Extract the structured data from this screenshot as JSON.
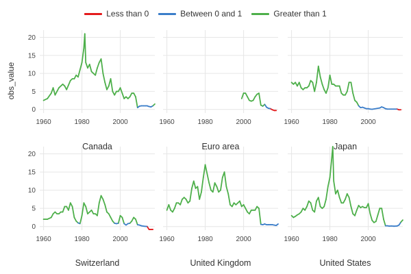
{
  "chart_data": {
    "type": "line",
    "ylabel": "obs_value",
    "legend": {
      "placement": "top",
      "items": [
        {
          "label": "Less than 0",
          "color": "#e41a1c"
        },
        {
          "label": "Between 0 and 1",
          "color": "#3a7dc9"
        },
        {
          "label": "Greater than 1",
          "color": "#4daf4a"
        }
      ]
    },
    "x_ticks": [
      1960,
      1980,
      2000
    ],
    "y_ticks": [
      0,
      5,
      10,
      15,
      20
    ],
    "xlim": [
      1958,
      2018
    ],
    "ylim": [
      -1,
      22
    ],
    "grid": true,
    "thresholds": {
      "low": 0,
      "high": 1
    },
    "panels": [
      {
        "title": "Canada",
        "points": [
          [
            1960,
            2.5
          ],
          [
            1962,
            3.0
          ],
          [
            1964,
            4.5
          ],
          [
            1965,
            6.0
          ],
          [
            1966,
            4.0
          ],
          [
            1968,
            6.0
          ],
          [
            1970,
            7.0
          ],
          [
            1971,
            6.5
          ],
          [
            1972,
            5.5
          ],
          [
            1974,
            8.0
          ],
          [
            1975,
            8.5
          ],
          [
            1976,
            8.5
          ],
          [
            1977,
            9.5
          ],
          [
            1978,
            9.0
          ],
          [
            1979,
            11.0
          ],
          [
            1980,
            13.0
          ],
          [
            1981,
            17.0
          ],
          [
            1981.5,
            21.0
          ],
          [
            1982,
            13.0
          ],
          [
            1983,
            11.5
          ],
          [
            1984,
            12.5
          ],
          [
            1985,
            10.5
          ],
          [
            1986,
            10.0
          ],
          [
            1987,
            9.5
          ],
          [
            1988,
            11.5
          ],
          [
            1989,
            13.0
          ],
          [
            1990,
            14.0
          ],
          [
            1991,
            10.0
          ],
          [
            1992,
            7.5
          ],
          [
            1993,
            5.5
          ],
          [
            1994,
            6.5
          ],
          [
            1995,
            8.5
          ],
          [
            1996,
            5.0
          ],
          [
            1997,
            4.0
          ],
          [
            1998,
            5.0
          ],
          [
            1999,
            5.0
          ],
          [
            2000,
            6.0
          ],
          [
            2001,
            4.5
          ],
          [
            2002,
            3.0
          ],
          [
            2003,
            3.5
          ],
          [
            2004,
            3.0
          ],
          [
            2005,
            3.5
          ],
          [
            2006,
            4.5
          ],
          [
            2007,
            4.5
          ],
          [
            2008,
            3.5
          ],
          [
            2009,
            0.5
          ],
          [
            2010,
            0.9
          ],
          [
            2011,
            1.0
          ],
          [
            2012,
            1.0
          ],
          [
            2013,
            1.0
          ],
          [
            2014,
            1.0
          ],
          [
            2015,
            0.8
          ],
          [
            2016,
            0.7
          ],
          [
            2017,
            1.0
          ],
          [
            2018,
            1.5
          ]
        ]
      },
      {
        "title": "Euro area",
        "points": [
          [
            1999,
            3.0
          ],
          [
            2000,
            4.5
          ],
          [
            2001,
            4.5
          ],
          [
            2002,
            3.5
          ],
          [
            2003,
            2.5
          ],
          [
            2004,
            2.3
          ],
          [
            2005,
            2.5
          ],
          [
            2006,
            3.5
          ],
          [
            2007,
            4.2
          ],
          [
            2008,
            4.5
          ],
          [
            2009,
            1.2
          ],
          [
            2010,
            0.9
          ],
          [
            2011,
            1.4
          ],
          [
            2012,
            0.6
          ],
          [
            2013,
            0.3
          ],
          [
            2014,
            0.2
          ],
          [
            2015,
            -0.1
          ],
          [
            2016,
            -0.3
          ],
          [
            2017,
            -0.3
          ]
        ]
      },
      {
        "title": "Japan",
        "points": [
          [
            1960,
            7.5
          ],
          [
            1961,
            7.0
          ],
          [
            1962,
            7.5
          ],
          [
            1963,
            6.5
          ],
          [
            1964,
            7.5
          ],
          [
            1965,
            6.0
          ],
          [
            1966,
            5.5
          ],
          [
            1967,
            6.0
          ],
          [
            1968,
            6.0
          ],
          [
            1969,
            6.5
          ],
          [
            1970,
            8.0
          ],
          [
            1971,
            7.5
          ],
          [
            1972,
            5.0
          ],
          [
            1973,
            7.5
          ],
          [
            1974,
            12.0
          ],
          [
            1975,
            9.0
          ],
          [
            1976,
            7.0
          ],
          [
            1977,
            5.5
          ],
          [
            1978,
            4.5
          ],
          [
            1979,
            6.0
          ],
          [
            1980,
            9.5
          ],
          [
            1981,
            7.0
          ],
          [
            1982,
            7.0
          ],
          [
            1983,
            6.5
          ],
          [
            1984,
            6.5
          ],
          [
            1985,
            6.5
          ],
          [
            1986,
            4.5
          ],
          [
            1987,
            4.0
          ],
          [
            1988,
            4.0
          ],
          [
            1989,
            5.0
          ],
          [
            1990,
            7.5
          ],
          [
            1991,
            7.5
          ],
          [
            1992,
            4.5
          ],
          [
            1993,
            2.5
          ],
          [
            1994,
            2.0
          ],
          [
            1995,
            1.0
          ],
          [
            1996,
            0.5
          ],
          [
            1997,
            0.6
          ],
          [
            1998,
            0.4
          ],
          [
            1999,
            0.2
          ],
          [
            2000,
            0.2
          ],
          [
            2001,
            0.1
          ],
          [
            2002,
            0.05
          ],
          [
            2006,
            0.4
          ],
          [
            2007,
            0.7
          ],
          [
            2008,
            0.5
          ],
          [
            2009,
            0.2
          ],
          [
            2010,
            0.1
          ],
          [
            2011,
            0.1
          ],
          [
            2012,
            0.1
          ],
          [
            2013,
            0.1
          ],
          [
            2014,
            0.1
          ],
          [
            2015,
            0.1
          ],
          [
            2016,
            -0.1
          ],
          [
            2017,
            -0.1
          ]
        ]
      },
      {
        "title": "Switzerland",
        "points": [
          [
            1960,
            2.0
          ],
          [
            1962,
            2.0
          ],
          [
            1964,
            2.5
          ],
          [
            1965,
            3.5
          ],
          [
            1966,
            4.0
          ],
          [
            1967,
            3.5
          ],
          [
            1968,
            3.5
          ],
          [
            1969,
            4.0
          ],
          [
            1970,
            4.0
          ],
          [
            1971,
            5.5
          ],
          [
            1972,
            5.5
          ],
          [
            1973,
            4.5
          ],
          [
            1974,
            6.5
          ],
          [
            1975,
            5.5
          ],
          [
            1976,
            2.5
          ],
          [
            1977,
            1.5
          ],
          [
            1978,
            1.0
          ],
          [
            1979,
            0.8
          ],
          [
            1980,
            3.0
          ],
          [
            1981,
            6.5
          ],
          [
            1982,
            5.5
          ],
          [
            1983,
            3.5
          ],
          [
            1984,
            4.0
          ],
          [
            1985,
            4.5
          ],
          [
            1986,
            3.5
          ],
          [
            1987,
            3.5
          ],
          [
            1988,
            3.0
          ],
          [
            1989,
            6.5
          ],
          [
            1990,
            8.5
          ],
          [
            1991,
            7.5
          ],
          [
            1992,
            6.0
          ],
          [
            1993,
            4.0
          ],
          [
            1994,
            3.5
          ],
          [
            1995,
            2.5
          ],
          [
            1996,
            1.5
          ],
          [
            1997,
            0.9
          ],
          [
            1998,
            0.8
          ],
          [
            1999,
            0.9
          ],
          [
            2000,
            3.0
          ],
          [
            2001,
            2.5
          ],
          [
            2002,
            0.8
          ],
          [
            2003,
            0.4
          ],
          [
            2004,
            0.8
          ],
          [
            2005,
            0.9
          ],
          [
            2006,
            1.5
          ],
          [
            2007,
            2.5
          ],
          [
            2008,
            2.0
          ],
          [
            2009,
            0.5
          ],
          [
            2010,
            0.4
          ],
          [
            2011,
            0.2
          ],
          [
            2012,
            0.1
          ],
          [
            2013,
            0.05
          ],
          [
            2014,
            0.02
          ],
          [
            2015,
            -0.8
          ],
          [
            2016,
            -0.8
          ],
          [
            2017,
            -0.8
          ]
        ]
      },
      {
        "title": "United Kingdom",
        "points": [
          [
            1960,
            4.5
          ],
          [
            1961,
            6.0
          ],
          [
            1962,
            4.5
          ],
          [
            1963,
            4.0
          ],
          [
            1964,
            5.0
          ],
          [
            1965,
            6.5
          ],
          [
            1966,
            6.5
          ],
          [
            1967,
            6.0
          ],
          [
            1968,
            7.5
          ],
          [
            1969,
            8.0
          ],
          [
            1970,
            7.5
          ],
          [
            1971,
            6.5
          ],
          [
            1972,
            7.0
          ],
          [
            1973,
            10.5
          ],
          [
            1974,
            12.5
          ],
          [
            1975,
            10.5
          ],
          [
            1976,
            11.0
          ],
          [
            1977,
            7.5
          ],
          [
            1978,
            9.5
          ],
          [
            1979,
            13.5
          ],
          [
            1980,
            17.0
          ],
          [
            1981,
            14.5
          ],
          [
            1982,
            12.0
          ],
          [
            1983,
            10.0
          ],
          [
            1984,
            9.5
          ],
          [
            1985,
            12.0
          ],
          [
            1986,
            11.0
          ],
          [
            1987,
            9.5
          ],
          [
            1988,
            10.0
          ],
          [
            1989,
            13.5
          ],
          [
            1990,
            15.0
          ],
          [
            1991,
            11.0
          ],
          [
            1992,
            9.0
          ],
          [
            1993,
            6.0
          ],
          [
            1994,
            5.5
          ],
          [
            1995,
            6.5
          ],
          [
            1996,
            6.0
          ],
          [
            1997,
            6.5
          ],
          [
            1998,
            7.0
          ],
          [
            1999,
            5.5
          ],
          [
            2000,
            6.0
          ],
          [
            2001,
            5.0
          ],
          [
            2002,
            4.0
          ],
          [
            2003,
            3.5
          ],
          [
            2004,
            4.5
          ],
          [
            2005,
            4.5
          ],
          [
            2006,
            4.5
          ],
          [
            2007,
            5.5
          ],
          [
            2008,
            5.0
          ],
          [
            2009,
            0.6
          ],
          [
            2010,
            0.5
          ],
          [
            2011,
            0.7
          ],
          [
            2012,
            0.5
          ],
          [
            2013,
            0.5
          ],
          [
            2014,
            0.5
          ],
          [
            2015,
            0.5
          ],
          [
            2016,
            0.4
          ],
          [
            2017,
            0.3
          ],
          [
            2018,
            0.7
          ]
        ]
      },
      {
        "title": "United States",
        "points": [
          [
            1960,
            3.0
          ],
          [
            1961,
            2.5
          ],
          [
            1962,
            2.8
          ],
          [
            1963,
            3.2
          ],
          [
            1964,
            3.5
          ],
          [
            1965,
            4.0
          ],
          [
            1966,
            5.0
          ],
          [
            1967,
            4.5
          ],
          [
            1968,
            5.5
          ],
          [
            1969,
            7.0
          ],
          [
            1970,
            6.5
          ],
          [
            1971,
            4.5
          ],
          [
            1972,
            4.0
          ],
          [
            1973,
            7.0
          ],
          [
            1974,
            8.0
          ],
          [
            1975,
            5.5
          ],
          [
            1976,
            5.0
          ],
          [
            1977,
            5.5
          ],
          [
            1978,
            7.5
          ],
          [
            1979,
            11.0
          ],
          [
            1980,
            13.5
          ],
          [
            1981,
            19.0
          ],
          [
            1981.5,
            22.0
          ],
          [
            1982,
            12.5
          ],
          [
            1983,
            9.0
          ],
          [
            1984,
            10.0
          ],
          [
            1985,
            8.0
          ],
          [
            1986,
            6.5
          ],
          [
            1987,
            6.5
          ],
          [
            1988,
            7.5
          ],
          [
            1989,
            9.0
          ],
          [
            1990,
            8.0
          ],
          [
            1991,
            5.5
          ],
          [
            1992,
            3.5
          ],
          [
            1993,
            3.0
          ],
          [
            1994,
            4.5
          ],
          [
            1995,
            5.8
          ],
          [
            1996,
            5.2
          ],
          [
            1997,
            5.5
          ],
          [
            1998,
            5.2
          ],
          [
            1999,
            5.2
          ],
          [
            2000,
            6.3
          ],
          [
            2001,
            3.5
          ],
          [
            2002,
            1.7
          ],
          [
            2003,
            1.1
          ],
          [
            2004,
            1.4
          ],
          [
            2005,
            3.2
          ],
          [
            2006,
            5.0
          ],
          [
            2007,
            5.0
          ],
          [
            2008,
            2.0
          ],
          [
            2009,
            0.2
          ],
          [
            2010,
            0.2
          ],
          [
            2011,
            0.1
          ],
          [
            2012,
            0.15
          ],
          [
            2013,
            0.1
          ],
          [
            2014,
            0.1
          ],
          [
            2015,
            0.15
          ],
          [
            2016,
            0.4
          ],
          [
            2017,
            1.2
          ],
          [
            2018,
            1.8
          ]
        ]
      }
    ]
  }
}
